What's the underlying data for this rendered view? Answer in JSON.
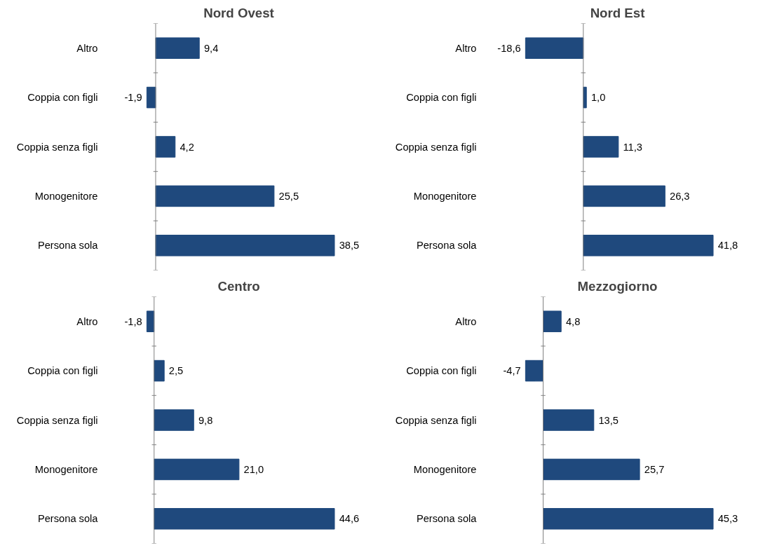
{
  "chart_data": [
    {
      "type": "bar",
      "orientation": "horizontal",
      "title": "Nord Ovest",
      "categories": [
        "Altro",
        "Coppia con figli",
        "Coppia senza figli",
        "Monogenitore",
        "Persona sola"
      ],
      "values": [
        9.4,
        -1.9,
        4.2,
        25.5,
        38.5
      ],
      "value_labels": [
        "9,4",
        "-1,9",
        "4,2",
        "25,5",
        "38,5"
      ],
      "color": "#1f497d"
    },
    {
      "type": "bar",
      "orientation": "horizontal",
      "title": "Nord Est",
      "categories": [
        "Altro",
        "Coppia con figli",
        "Coppia senza figli",
        "Monogenitore",
        "Persona sola"
      ],
      "values": [
        -18.6,
        1.0,
        11.3,
        26.3,
        41.8
      ],
      "value_labels": [
        "-18,6",
        "1,0",
        "11,3",
        "26,3",
        "41,8"
      ],
      "color": "#1f497d"
    },
    {
      "type": "bar",
      "orientation": "horizontal",
      "title": "Centro",
      "categories": [
        "Altro",
        "Coppia con figli",
        "Coppia senza figli",
        "Monogenitore",
        "Persona sola"
      ],
      "values": [
        -1.8,
        2.5,
        9.8,
        21.0,
        44.6
      ],
      "value_labels": [
        "-1,8",
        "2,5",
        "9,8",
        "21,0",
        "44,6"
      ],
      "color": "#1f497d"
    },
    {
      "type": "bar",
      "orientation": "horizontal",
      "title": "Mezzogiorno",
      "categories": [
        "Altro",
        "Coppia con figli",
        "Coppia senza figli",
        "Monogenitore",
        "Persona sola"
      ],
      "values": [
        4.8,
        -4.7,
        13.5,
        25.7,
        45.3
      ],
      "value_labels": [
        "4,8",
        "-4,7",
        "13,5",
        "25,7",
        "45,3"
      ],
      "color": "#1f497d"
    }
  ]
}
